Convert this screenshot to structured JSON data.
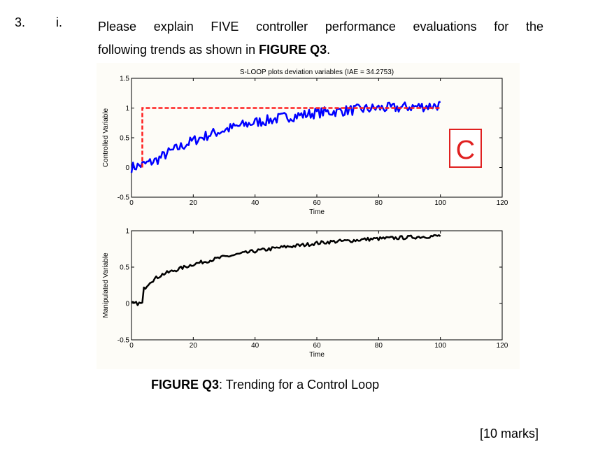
{
  "question": {
    "number": "3.",
    "part": "i.",
    "line1": "Please explain FIVE controller performance evaluations for the",
    "line2_pre": "following trends as shown in ",
    "line2_bold": "FIGURE Q3",
    "line2_post": "."
  },
  "caption": {
    "bold": "FIGURE Q3",
    "rest": ": Trending for a Control Loop"
  },
  "marks": "[10 marks]",
  "chart_data": [
    {
      "type": "line",
      "title": "S-LOOP plots deviation variables (IAE = 34.2753)",
      "xlabel": "Time",
      "ylabel": "Controlled Variable",
      "xlim": [
        0,
        120
      ],
      "ylim": [
        -0.5,
        1.5
      ],
      "xticks": [
        0,
        20,
        40,
        60,
        80,
        100,
        120
      ],
      "yticks": [
        -0.5,
        0,
        0.5,
        1,
        1.5
      ],
      "ytick_labels": [
        "-0.5",
        "0",
        "0.5",
        "1",
        "1.5"
      ],
      "annotation": "C",
      "annotation_color": "#e02020",
      "series": [
        {
          "color": "#0000ff",
          "style": "noisy",
          "x": [
            0,
            4,
            8,
            12,
            16,
            20,
            25,
            30,
            35,
            40,
            45,
            50,
            55,
            60,
            65,
            70,
            75,
            80,
            85,
            90,
            95,
            100
          ],
          "values": [
            0.0,
            0.05,
            0.12,
            0.25,
            0.35,
            0.45,
            0.55,
            0.63,
            0.7,
            0.76,
            0.8,
            0.85,
            0.88,
            0.92,
            0.94,
            0.96,
            0.98,
            1.0,
            1.0,
            1.02,
            1.03,
            1.05
          ]
        },
        {
          "color": "#ff2020",
          "style": "dashed",
          "x": [
            3.5,
            3.5,
            100
          ],
          "values": [
            0.0,
            1.0,
            1.0
          ]
        }
      ]
    },
    {
      "type": "line",
      "xlabel": "Time",
      "ylabel": "Manipulated Variable",
      "xlim": [
        0,
        120
      ],
      "ylim": [
        -0.5,
        1
      ],
      "xticks": [
        0,
        20,
        40,
        60,
        80,
        100,
        120
      ],
      "yticks": [
        -0.5,
        0,
        0.5,
        1
      ],
      "ytick_labels": [
        "-0.5",
        "0",
        "0.5",
        "1"
      ],
      "series": [
        {
          "color": "#000000",
          "style": "noisy",
          "x": [
            0,
            3.5,
            4,
            6,
            10,
            15,
            20,
            25,
            30,
            35,
            40,
            45,
            50,
            55,
            60,
            65,
            70,
            75,
            80,
            85,
            90,
            95,
            100
          ],
          "values": [
            0.0,
            0.0,
            0.2,
            0.3,
            0.4,
            0.47,
            0.54,
            0.59,
            0.64,
            0.68,
            0.72,
            0.75,
            0.78,
            0.8,
            0.83,
            0.85,
            0.86,
            0.88,
            0.89,
            0.9,
            0.91,
            0.92,
            0.93
          ]
        }
      ]
    }
  ]
}
